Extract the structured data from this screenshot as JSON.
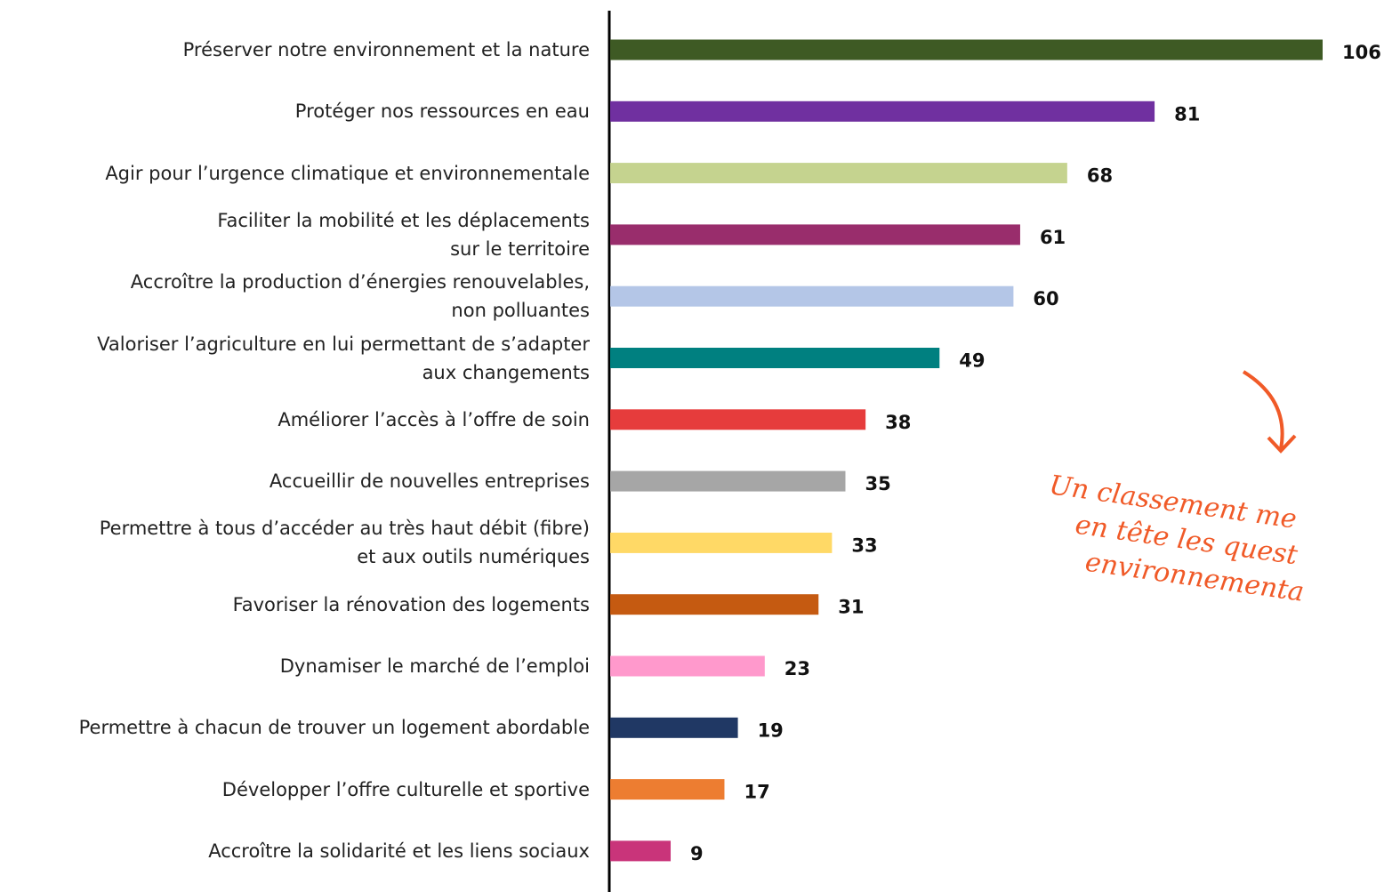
{
  "chart_data": {
    "type": "bar",
    "orientation": "horizontal",
    "categories": [
      "Préserver notre environnement et la nature",
      "Protéger nos ressources en eau",
      "Agir pour l’urgence climatique et environnementale",
      "Faciliter la mobilité et les déplacements\nsur le territoire",
      "Accroître la production d’énergies renouvelables,\nnon polluantes",
      "Valoriser l’agriculture en lui permettant de s’adapter\naux changements",
      "Améliorer l’accès à l’offre de soin",
      "Accueillir de nouvelles entreprises",
      "Permettre à tous d’accéder au très haut débit (fibre)\net aux outils numériques",
      "Favoriser la rénovation des logements",
      "Dynamiser le marché de l’emploi",
      "Permettre à chacun de trouver un logement abordable",
      "Développer l’offre culturelle et sportive",
      "Accroître la solidarité et les liens sociaux"
    ],
    "values": [
      106,
      81,
      68,
      61,
      60,
      49,
      38,
      35,
      33,
      31,
      23,
      19,
      17,
      9
    ],
    "colors": [
      "#3e5a24",
      "#7030a0",
      "#c5d38f",
      "#992d6c",
      "#b4c6e7",
      "#008080",
      "#e63c3c",
      "#a6a6a6",
      "#ffd966",
      "#c55a11",
      "#ff99cc",
      "#203864",
      "#ed7d31",
      "#c9347a"
    ],
    "annotation": [
      "Un classement me",
      "en tête les quest",
      "environnementa"
    ]
  }
}
